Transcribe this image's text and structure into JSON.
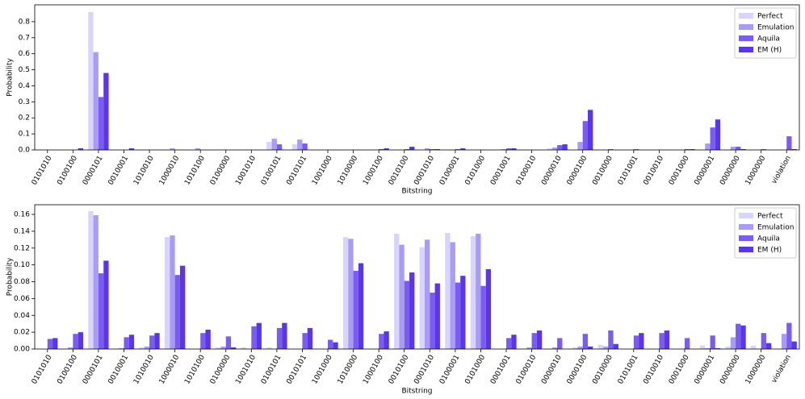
{
  "chart_data": [
    {
      "type": "bar",
      "x_label": "Bitstring",
      "y_label": "Probability",
      "legend": "upper right",
      "categories": [
        "0101010",
        "0100100",
        "0000101",
        "0010001",
        "1010010",
        "1000010",
        "1010100",
        "0100000",
        "1001010",
        "0100101",
        "0010101",
        "1001000",
        "1010000",
        "1000100",
        "0010100",
        "0001010",
        "0100001",
        "0101000",
        "0001001",
        "0100010",
        "0000010",
        "0000100",
        "0010000",
        "0101001",
        "0010010",
        "0001000",
        "0000001",
        "0000000",
        "1000000",
        "violation"
      ],
      "series": [
        {
          "name": "Perfect",
          "color": "#d9d4ff",
          "values": [
            0,
            0,
            0.86,
            0,
            0,
            0,
            0,
            0,
            0,
            0.05,
            0.035,
            0,
            0,
            0,
            0,
            0,
            0,
            0,
            0,
            0,
            0.01,
            0,
            0,
            0,
            0,
            0,
            0,
            0,
            0,
            0
          ]
        },
        {
          "name": "Emulation",
          "color": "#a99cf7",
          "values": [
            0,
            0,
            0.61,
            0,
            0,
            0.01,
            0.01,
            0,
            0,
            0.07,
            0.065,
            0,
            0,
            0,
            0,
            0.01,
            0,
            0,
            0.005,
            0,
            0.015,
            0.05,
            0,
            0,
            0,
            0,
            0.04,
            0.02,
            0,
            0
          ]
        },
        {
          "name": "Aquila",
          "color": "#7b5cf0",
          "values": [
            0,
            0,
            0.33,
            0,
            0,
            0,
            0,
            0,
            0,
            0.035,
            0.04,
            0,
            0,
            0.005,
            0.005,
            0.005,
            0.005,
            0,
            0.01,
            0,
            0.03,
            0.18,
            0.005,
            0.005,
            0,
            0.005,
            0.14,
            0.02,
            0.005,
            0.085
          ]
        },
        {
          "name": "EM (H)",
          "color": "#5a35f0",
          "values": [
            0,
            0.01,
            0.48,
            0.01,
            0,
            0,
            0,
            0,
            0,
            0,
            0,
            0,
            0,
            0.01,
            0.02,
            0.005,
            0.01,
            0,
            0.01,
            0,
            0.035,
            0.25,
            0,
            0,
            0,
            0.005,
            0.19,
            0.005,
            0,
            0.005
          ]
        }
      ],
      "ylim": [
        0,
        0.905
      ],
      "yticks": [
        {
          "value": 0,
          "label": "0.0"
        },
        0.1,
        0.2,
        0.3,
        0.4,
        0.5,
        0.6,
        0.7,
        0.8
      ]
    },
    {
      "type": "bar",
      "x_label": "Bitstring",
      "y_label": "Probability",
      "legend": "upper right",
      "categories": [
        "0101010",
        "0100100",
        "0000101",
        "0010001",
        "1010010",
        "1000010",
        "1010100",
        "0100000",
        "1001010",
        "0100101",
        "0010101",
        "1001000",
        "1010000",
        "1000100",
        "0010100",
        "0001010",
        "0100001",
        "0101000",
        "0001001",
        "0100010",
        "0000010",
        "0000100",
        "0010000",
        "0101001",
        "0010010",
        "0001000",
        "0000001",
        "0000000",
        "1000000",
        "violation"
      ],
      "series": [
        {
          "name": "Perfect",
          "color": "#d9d4ff",
          "values": [
            0,
            0,
            0.164,
            0,
            0.002,
            0.133,
            0,
            0.002,
            0.002,
            0.002,
            0,
            0,
            0.133,
            0,
            0.137,
            0.121,
            0.138,
            0.134,
            0,
            0,
            0,
            0.002,
            0.005,
            0,
            0,
            0,
            0.004,
            0.003,
            0.004,
            0
          ]
        },
        {
          "name": "Emulation",
          "color": "#a99cf7",
          "values": [
            0,
            0.002,
            0.159,
            0.001,
            0.003,
            0.135,
            0,
            0.003,
            0,
            0,
            0,
            0,
            0.131,
            0,
            0.124,
            0.13,
            0.127,
            0.137,
            0,
            0.002,
            0.002,
            0.003,
            0.003,
            0,
            0,
            0,
            0.001,
            0.014,
            0,
            0.018
          ]
        },
        {
          "name": "Aquila",
          "color": "#7b5cf0",
          "values": [
            0.012,
            0.018,
            0.09,
            0.014,
            0.016,
            0.088,
            0.019,
            0.015,
            0.027,
            0.025,
            0.019,
            0.011,
            0.093,
            0.018,
            0.081,
            0.067,
            0.079,
            0.075,
            0.013,
            0.019,
            0.013,
            0.018,
            0.022,
            0.016,
            0.019,
            0.013,
            0.016,
            0.03,
            0.019,
            0.031
          ]
        },
        {
          "name": "EM (H)",
          "color": "#5a35f0",
          "values": [
            0.013,
            0.02,
            0.105,
            0.017,
            0.019,
            0.099,
            0.023,
            0.002,
            0.031,
            0.031,
            0.025,
            0.008,
            0.102,
            0.021,
            0.091,
            0.078,
            0.087,
            0.095,
            0.017,
            0.022,
            0,
            0.003,
            0.006,
            0.019,
            0.022,
            0,
            0.001,
            0.028,
            0.007,
            0.009
          ]
        }
      ],
      "ylim": [
        0,
        0.1715
      ],
      "yticks": [
        {
          "value": 0,
          "label": "0.00"
        },
        {
          "value": 0.02,
          "label": "0.02"
        },
        {
          "value": 0.04,
          "label": "0.04"
        },
        {
          "value": 0.06,
          "label": "0.06"
        },
        {
          "value": 0.08,
          "label": "0.08"
        },
        {
          "value": 0.1,
          "label": "0.10"
        },
        {
          "value": 0.12,
          "label": "0.12"
        },
        {
          "value": 0.14,
          "label": "0.14"
        },
        {
          "value": 0.16,
          "label": "0.16"
        }
      ]
    }
  ]
}
